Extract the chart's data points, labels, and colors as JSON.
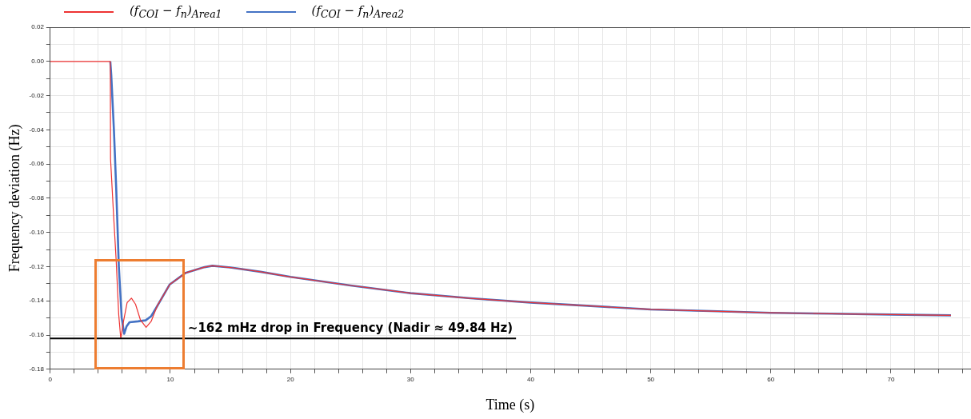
{
  "chart_data": {
    "type": "line",
    "xlabel": "Time (s)",
    "ylabel": "Frequency deviation (Hz)",
    "series": [
      {
        "name": "(f$_{COI}$ − f$_{n}$)$_{Area1}$",
        "color": "#ee3333",
        "x": [
          0,
          2,
          4,
          5.0,
          5.02,
          5.25,
          5.49,
          5.7,
          5.87,
          6.1,
          6.4,
          6.76,
          7.1,
          7.5,
          7.98,
          8.4,
          8.9,
          9.95,
          11.28,
          12.84,
          13.5,
          15,
          17.5,
          20,
          25,
          30,
          35,
          40,
          45,
          50,
          55,
          60,
          65,
          70,
          75
        ],
        "values": [
          0,
          0,
          0,
          0,
          -0.057,
          -0.087,
          -0.1166,
          -0.148,
          -0.162,
          -0.152,
          -0.141,
          -0.1384,
          -0.142,
          -0.151,
          -0.1555,
          -0.152,
          -0.143,
          -0.1304,
          -0.1236,
          -0.1203,
          -0.1195,
          -0.1205,
          -0.123,
          -0.126,
          -0.131,
          -0.1355,
          -0.1385,
          -0.141,
          -0.143,
          -0.145,
          -0.146,
          -0.147,
          -0.1475,
          -0.148,
          -0.1485
        ]
      },
      {
        "name": "(f$_{COI}$ − f$_{n}$)$_{Area2}$",
        "color": "#4472c4",
        "x": [
          5.0,
          5.08,
          5.3,
          5.49,
          5.71,
          5.95,
          6.15,
          6.35,
          6.6,
          7.3,
          7.94,
          8.4,
          8.83,
          9.95,
          11.28,
          12.84,
          13.5,
          15,
          17.5,
          20,
          25,
          30,
          35,
          40,
          45,
          50,
          55,
          60,
          65,
          70,
          75
        ],
        "values": [
          0,
          -0.0082,
          -0.04,
          -0.074,
          -0.1198,
          -0.15,
          -0.1593,
          -0.155,
          -0.1525,
          -0.152,
          -0.1514,
          -0.149,
          -0.144,
          -0.1304,
          -0.1236,
          -0.1203,
          -0.1195,
          -0.1205,
          -0.123,
          -0.126,
          -0.131,
          -0.1355,
          -0.1385,
          -0.141,
          -0.143,
          -0.145,
          -0.146,
          -0.147,
          -0.1475,
          -0.148,
          -0.1485
        ]
      }
    ],
    "xlim": [
      0,
      76.6
    ],
    "xticks": [
      0,
      {
        "value": 2,
        "label": null
      },
      {
        "value": 4,
        "label": null
      },
      {
        "value": 6,
        "label": null
      },
      {
        "value": 8,
        "label": null
      },
      10,
      {
        "value": 12,
        "label": null
      },
      {
        "value": 14,
        "label": null
      },
      {
        "value": 16,
        "label": null
      },
      {
        "value": 18,
        "label": null
      },
      20,
      {
        "value": 22,
        "label": null
      },
      {
        "value": 24,
        "label": null
      },
      {
        "value": 26,
        "label": null
      },
      {
        "value": 28,
        "label": null
      },
      30,
      {
        "value": 32,
        "label": null
      },
      {
        "value": 34,
        "label": null
      },
      {
        "value": 36,
        "label": null
      },
      {
        "value": 38,
        "label": null
      },
      40,
      {
        "value": 42,
        "label": null
      },
      {
        "value": 44,
        "label": null
      },
      {
        "value": 46,
        "label": null
      },
      {
        "value": 48,
        "label": null
      },
      50,
      {
        "value": 52,
        "label": null
      },
      {
        "value": 54,
        "label": null
      },
      {
        "value": 56,
        "label": null
      },
      {
        "value": 58,
        "label": null
      },
      60,
      {
        "value": 62,
        "label": null
      },
      {
        "value": 64,
        "label": null
      },
      {
        "value": 66,
        "label": null
      },
      {
        "value": 68,
        "label": null
      },
      70,
      {
        "value": 72,
        "label": null
      },
      {
        "value": 74,
        "label": null
      },
      {
        "value": 76,
        "label": null
      }
    ],
    "ylim": [
      -0.18,
      0.02
    ],
    "yticks": [
      -0.18,
      {
        "value": -0.17,
        "label": null
      },
      -0.16,
      {
        "value": -0.15,
        "label": null
      },
      -0.14,
      {
        "value": -0.13,
        "label": null
      },
      -0.12,
      {
        "value": -0.11,
        "label": null
      },
      {
        "value": -0.1,
        "label": "-0.10"
      },
      {
        "value": -0.09,
        "label": null
      },
      -0.08,
      {
        "value": -0.07,
        "label": null
      },
      -0.06,
      {
        "value": -0.05,
        "label": null
      },
      -0.04,
      {
        "value": -0.03,
        "label": null
      },
      -0.02,
      {
        "value": -0.01,
        "label": null
      },
      {
        "value": 0,
        "label": "0.00"
      },
      {
        "value": 0.01,
        "label": null
      },
      0.02
    ],
    "ref_lines": [
      {
        "axis": "y",
        "value": -0.162,
        "label": "∼162 mHz drop in Frequency (Nadir ≈ 49.84 Hz)",
        "color": "#000000"
      }
    ],
    "grid": true,
    "legend": "top left",
    "marker": "none",
    "line_style": "solid"
  }
}
